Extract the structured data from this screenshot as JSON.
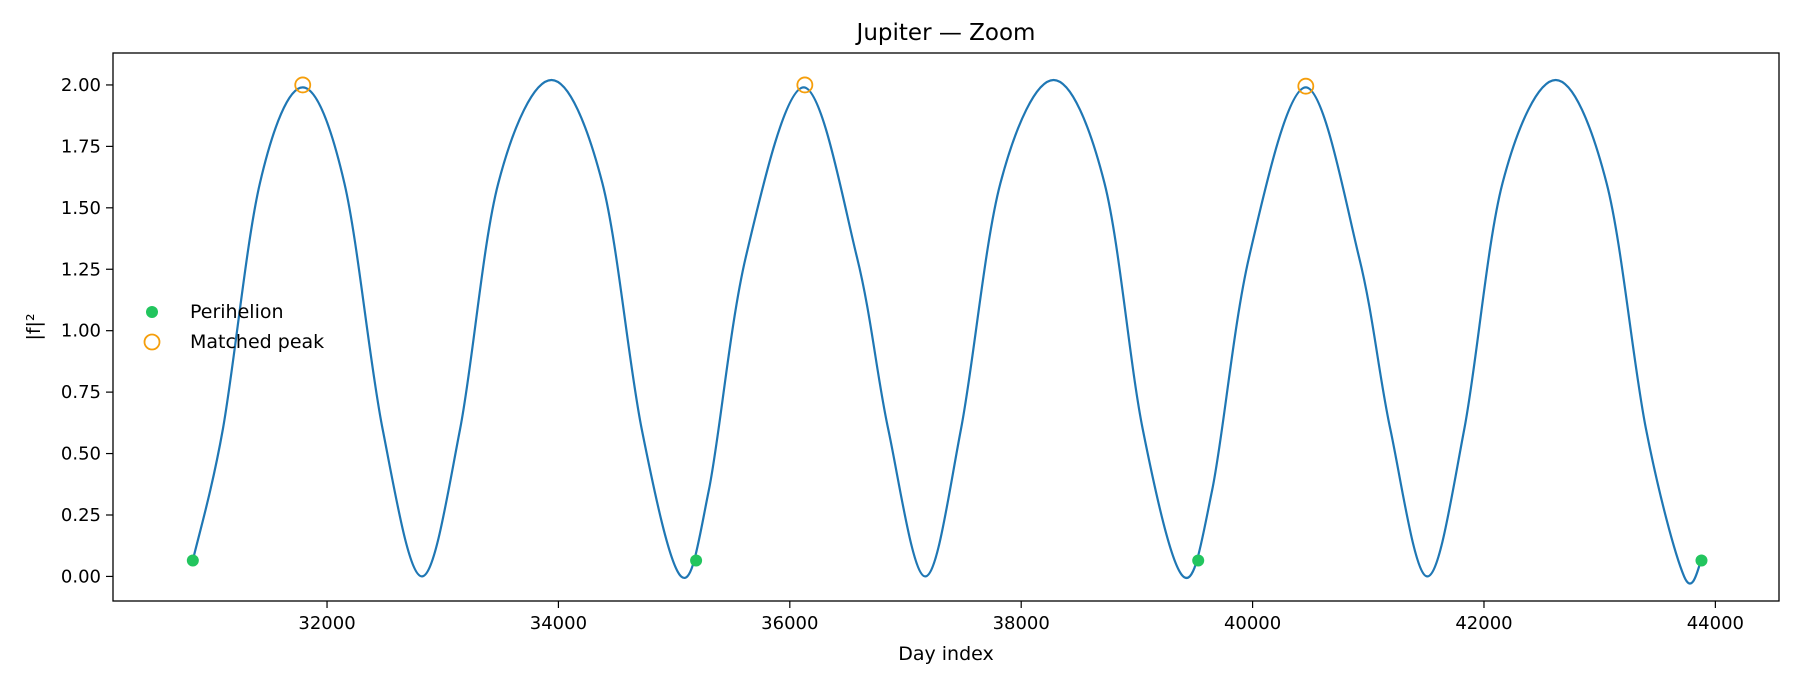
{
  "chart_data": {
    "type": "line",
    "title": "Jupiter — Zoom",
    "xlabel": "Day index",
    "ylabel": "|f|²",
    "xlim": [
      30150,
      44550
    ],
    "ylim": [
      -0.1,
      2.13
    ],
    "x_ticks": [
      32000,
      34000,
      36000,
      38000,
      40000,
      42000,
      44000
    ],
    "x_tick_labels": [
      "32000",
      "34000",
      "36000",
      "38000",
      "40000",
      "42000",
      "44000"
    ],
    "y_ticks": [
      0.0,
      0.25,
      0.5,
      0.75,
      1.0,
      1.25,
      1.5,
      1.75,
      2.0
    ],
    "y_tick_labels": [
      "0.00",
      "0.25",
      "0.50",
      "0.75",
      "1.00",
      "1.25",
      "1.50",
      "1.75",
      "2.00"
    ],
    "grid": false,
    "legend_position": "center-left",
    "series": [
      {
        "kind": "line",
        "color": "#1f77b4",
        "points": [
          [
            30840,
            0.065
          ],
          [
            31100,
            0.6
          ],
          [
            31420,
            1.6
          ],
          [
            31790,
            1.99
          ],
          [
            32150,
            1.6
          ],
          [
            32480,
            0.6
          ],
          [
            32820,
            0.0
          ],
          [
            33150,
            0.6
          ],
          [
            33480,
            1.6
          ],
          [
            33940,
            2.02
          ],
          [
            34380,
            1.6
          ],
          [
            34720,
            0.6
          ],
          [
            35060,
            0.0
          ],
          [
            35300,
            0.35
          ],
          [
            35620,
            1.3
          ],
          [
            36120,
            1.99
          ],
          [
            36580,
            1.3
          ],
          [
            36850,
            0.6
          ],
          [
            37170,
            0.0
          ],
          [
            37480,
            0.6
          ],
          [
            37820,
            1.6
          ],
          [
            38280,
            2.02
          ],
          [
            38720,
            1.6
          ],
          [
            39050,
            0.6
          ],
          [
            39400,
            0.0
          ],
          [
            39650,
            0.35
          ],
          [
            39970,
            1.3
          ],
          [
            40460,
            1.99
          ],
          [
            40920,
            1.3
          ],
          [
            41190,
            0.6
          ],
          [
            41510,
            0.0
          ],
          [
            41830,
            0.6
          ],
          [
            42160,
            1.6
          ],
          [
            42620,
            2.02
          ],
          [
            43060,
            1.6
          ],
          [
            43400,
            0.6
          ],
          [
            43730,
            0.0
          ],
          [
            43880,
            0.065
          ]
        ]
      },
      {
        "kind": "scatter",
        "name": "Perihelion",
        "color": "#22c55e",
        "marker": "filled-circle",
        "x": [
          30840,
          35190,
          39530,
          43880
        ],
        "y": [
          0.065,
          0.065,
          0.065,
          0.065
        ]
      },
      {
        "kind": "scatter",
        "name": "Matched peak",
        "color": "#f59e0b",
        "marker": "open-circle",
        "x": [
          31790,
          36130,
          40460
        ],
        "y": [
          2.0,
          2.0,
          1.995
        ]
      }
    ]
  }
}
